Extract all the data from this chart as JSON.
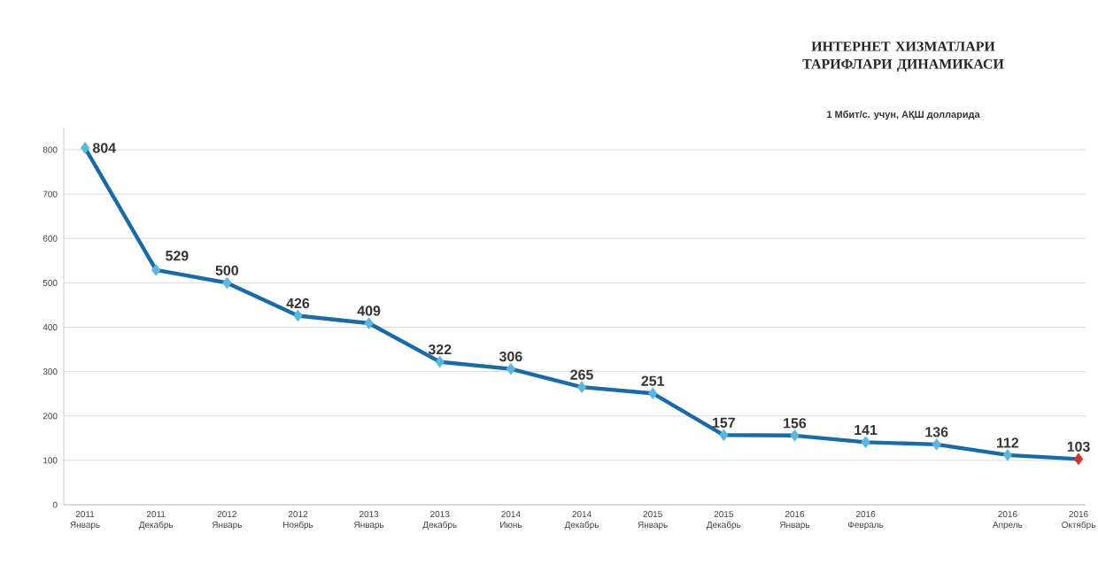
{
  "chart_data": {
    "type": "line",
    "title": "ИНТЕРНЕТ ХИЗМАТЛАРИ ТАРИФЛАРИ ДИНАМИКАСИ",
    "subtitle": "1 Мбит/с. учун, АҚШ долларида",
    "categories": [
      "2011 Январь",
      "2011 Декабрь",
      "2012 Январь",
      "2012 Ноябрь",
      "2013 Январь",
      "2013 Декабрь",
      "2014 Июнь",
      "2014 Декабрь",
      "2015 Январь",
      "2015 Декабрь",
      "2016 Январь",
      "2016 Февраль",
      null,
      "2016 Апрель",
      "2016 Октябрь"
    ],
    "series": [
      {
        "color": "#1a6aa6",
        "values": [
          804,
          529,
          500,
          426,
          409,
          322,
          306,
          265,
          251,
          157,
          156,
          141,
          136,
          112,
          103
        ],
        "colors": [
          "#5bb8dc",
          "#5bb8dc",
          "#5bb8dc",
          "#5bb8dc",
          "#5bb8dc",
          "#5bb8dc",
          "#5bb8dc",
          "#5bb8dc",
          "#5bb8dc",
          "#5bb8dc",
          "#5bb8dc",
          "#5bb8dc",
          "#5bb8dc",
          "#5bb8dc",
          "#d0312d"
        ]
      }
    ],
    "ylim": [
      0,
      850
    ],
    "yticks": [
      0,
      100,
      200,
      300,
      400,
      500,
      600,
      700,
      800
    ],
    "grid": "y",
    "marker": "diamond",
    "line_style": "solid",
    "data_labels": true
  }
}
